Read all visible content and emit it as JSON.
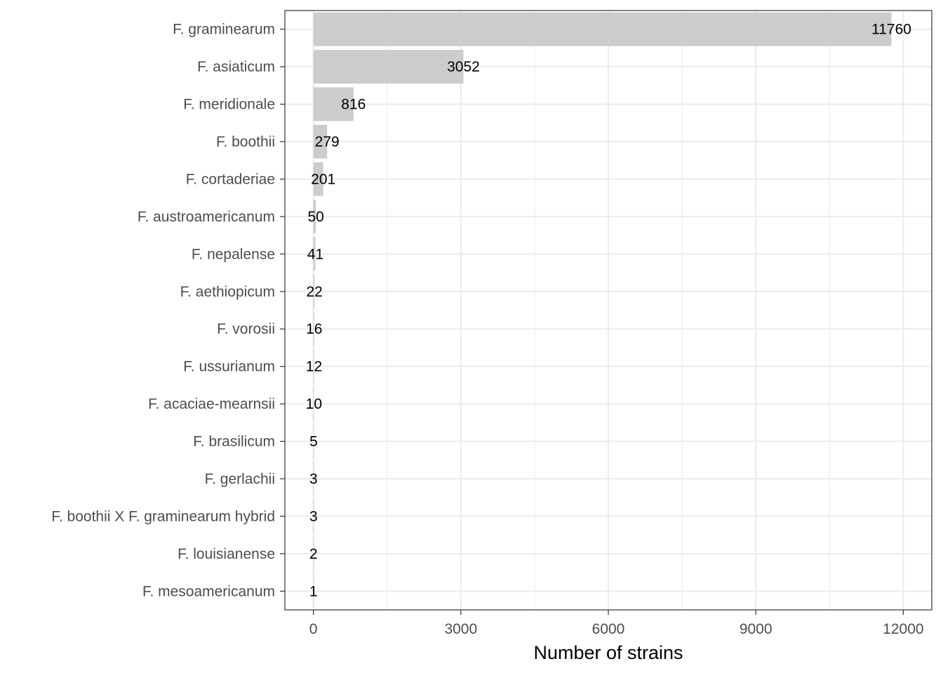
{
  "chart_data": {
    "type": "bar",
    "orientation": "horizontal",
    "categories": [
      "F. graminearum",
      "F. asiaticum",
      "F. meridionale",
      "F. boothii",
      "F. cortaderiae",
      "F. austroamericanum",
      "F. nepalense",
      "F. aethiopicum",
      "F. vorosii",
      "F. ussurianum",
      "F. acaciae-mearnsii",
      "F. brasilicum",
      "F. gerlachii",
      "F. boothii X F. graminearum hybrid",
      "F. louisianense",
      "F. mesoamericanum"
    ],
    "values": [
      11760,
      3052,
      816,
      279,
      201,
      50,
      41,
      22,
      16,
      12,
      10,
      5,
      3,
      3,
      2,
      1
    ],
    "title": "",
    "xlabel": "Number of strains",
    "ylabel": "",
    "xlim": [
      -580,
      12580
    ],
    "x_ticks": [
      0,
      3000,
      6000,
      9000,
      12000
    ],
    "grid": true,
    "legend": "none",
    "colors": {
      "bar": "#cccccc",
      "grid": "#ebebeb",
      "panel_border": "#333333",
      "label_text": "#4d4d4d",
      "data_label_text": "#000000"
    }
  }
}
